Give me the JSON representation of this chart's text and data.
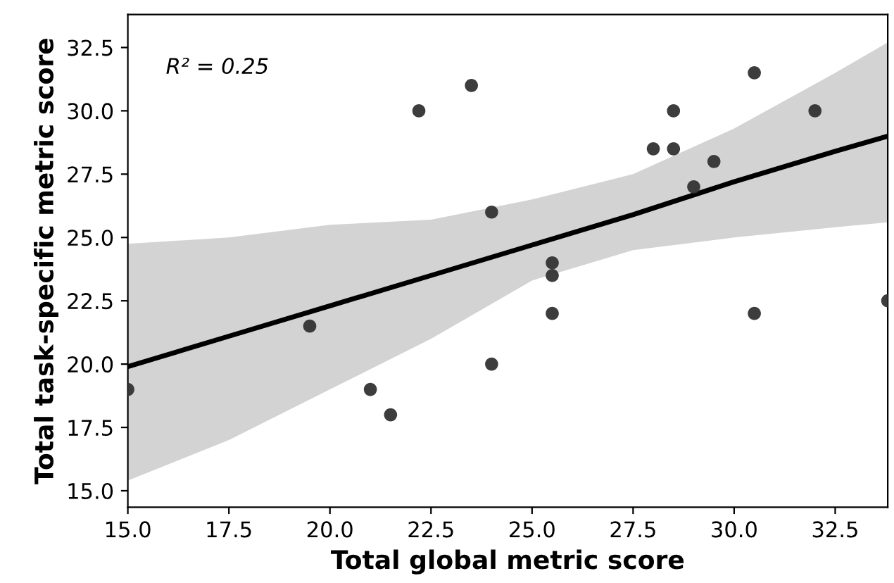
{
  "chart_data": {
    "type": "scatter",
    "xlabel": "Total global metric score",
    "ylabel": "Total task-specific metric score",
    "annotations": [
      "R² = 0.25"
    ],
    "xlim": [
      15,
      33.8
    ],
    "ylim": [
      14.35,
      33.8
    ],
    "xticks": [
      {
        "value": 15,
        "label": "15.0"
      },
      17.5,
      {
        "value": 20,
        "label": "20.0"
      },
      22.5,
      {
        "value": 25,
        "label": "25.0"
      },
      27.5,
      {
        "value": 30,
        "label": "30.0"
      },
      32.5
    ],
    "yticks": [
      {
        "value": 15,
        "label": "15.0"
      },
      17.5,
      {
        "value": 20,
        "label": "20.0"
      },
      22.5,
      {
        "value": 25,
        "label": "25.0"
      },
      27.5,
      {
        "value": 30,
        "label": "30.0"
      },
      32.5
    ],
    "grid": false,
    "legend": false,
    "series": [
      {
        "marker": "circle",
        "color": "#333333",
        "x": [
          15,
          19.5,
          21,
          21.5,
          22.2,
          23.5,
          24,
          24,
          25.5,
          25.5,
          25.5,
          28,
          28.5,
          28.5,
          29,
          29.5,
          30.5,
          30.5,
          32,
          33.8
        ],
        "values": [
          19,
          21.5,
          19,
          18,
          30,
          31,
          26,
          20,
          24,
          23.5,
          22,
          28.5,
          28.5,
          30,
          27,
          28,
          31.5,
          22,
          30,
          22.5
        ]
      },
      {
        "type": "line",
        "color": "#000000",
        "line_style": "solid",
        "x": [
          15,
          17.5,
          20,
          22.5,
          25,
          27.5,
          30,
          32.5,
          33.8
        ],
        "values": [
          19.9,
          21.1,
          22.3,
          23.5,
          24.7,
          25.9,
          27.2,
          28.4,
          29.0
        ],
        "lower": [
          15.4,
          17.0,
          19.0,
          21.0,
          23.3,
          24.5,
          25.0,
          25.4,
          25.6
        ],
        "upper": [
          24.75,
          25.0,
          25.5,
          25.7,
          26.5,
          27.5,
          29.3,
          31.5,
          32.7
        ]
      }
    ]
  }
}
